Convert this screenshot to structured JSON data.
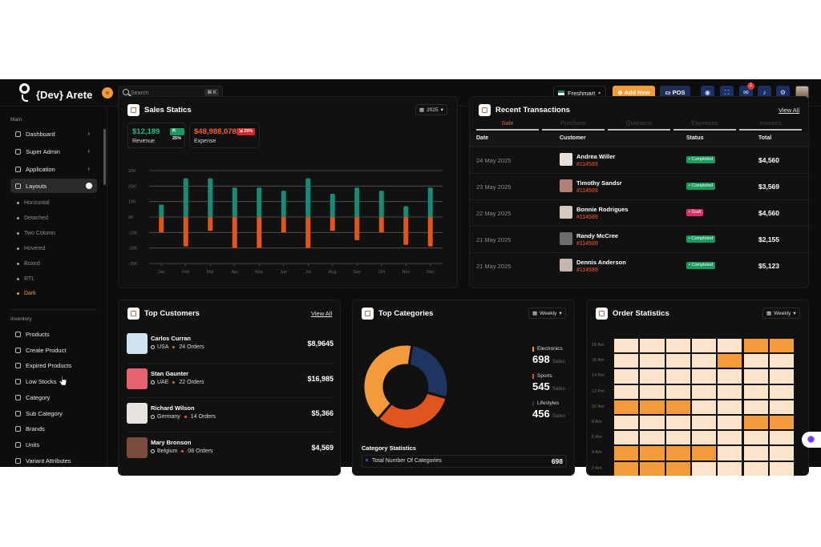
{
  "app": {
    "name": "{Dev} Arete"
  },
  "topbar": {
    "search_placeholder": "Search",
    "shortcut": "⌘ K",
    "store": "Freshmart",
    "add_new": "Add New",
    "pos": "POS",
    "notification_count": "1",
    "accent": "#f39a3a"
  },
  "sidebar": {
    "main_heading": "Main",
    "items": [
      {
        "label": "Dashboard"
      },
      {
        "label": "Super Admin"
      },
      {
        "label": "Application"
      },
      {
        "label": "Layouts"
      }
    ],
    "layouts": [
      "Horizontal",
      "Detached",
      "Two Column",
      "Hovered",
      "Boxed",
      "RTL",
      "Dark"
    ],
    "inventory_heading": "Inventory",
    "inventory": [
      "Products",
      "Create Product",
      "Expired Products",
      "Low Stocks",
      "Category",
      "Sub Category",
      "Brands",
      "Units",
      "Variant Attributes"
    ]
  },
  "sales": {
    "title": "Sales Statics",
    "year": "2025",
    "revenue": {
      "value": "$12,189",
      "pct": "25%",
      "label": "Revenue"
    },
    "expense": {
      "value": "$48,988,078",
      "pct": "25%",
      "label": "Expense"
    }
  },
  "chart_data": {
    "type": "bar",
    "categories": [
      "Jan",
      "Feb",
      "Mar",
      "Apr",
      "May",
      "Jun",
      "Jul",
      "Aug",
      "Sep",
      "Oct",
      "Nov",
      "Dec"
    ],
    "yticks": [
      "30K",
      "20K",
      "10K",
      "0K",
      "-10K",
      "-20K",
      "-30K"
    ],
    "ylim": [
      -30,
      30
    ],
    "series": [
      {
        "values": [
          8,
          25,
          25,
          19,
          19,
          17,
          25,
          15,
          19,
          17,
          7,
          19
        ],
        "color": "#1a8a78"
      },
      {
        "values": [
          -10,
          -19,
          -9,
          -20,
          -20,
          -10,
          -20,
          -9,
          -15,
          -10,
          -18,
          -19
        ],
        "color": "#e0541e"
      }
    ]
  },
  "transactions": {
    "title": "Recent Transactions",
    "view_all": "View All",
    "tabs": [
      "Sale",
      "Purchase",
      "Quotation",
      "Expenses",
      "Invoices"
    ],
    "headers": [
      "Date",
      "Customer",
      "Status",
      "Total"
    ],
    "rows": [
      {
        "date": "24 May 2025",
        "name": "Andrea Willer",
        "id": "#114589",
        "status": "Completed",
        "total": "$4,560"
      },
      {
        "date": "23 May 2025",
        "name": "Timothy Sandsr",
        "id": "#114589",
        "status": "Completed",
        "total": "$3,569"
      },
      {
        "date": "22 May 2025",
        "name": "Bonnie Rodrigues",
        "id": "#114589",
        "status": "Draft",
        "total": "$4,560"
      },
      {
        "date": "21 May 2025",
        "name": "Randy McCree",
        "id": "#114589",
        "status": "Completed",
        "total": "$2,155"
      },
      {
        "date": "21 May 2025",
        "name": "Dennis Anderson",
        "id": "#114589",
        "status": "Completed",
        "total": "$5,123"
      }
    ]
  },
  "customers": {
    "title": "Top Customers",
    "view_all": "View All",
    "list": [
      {
        "name": "Carlos Curran",
        "country": "USA",
        "orders": "24 Orders",
        "amount": "$8,9645"
      },
      {
        "name": "Stan Gaunter",
        "country": "UAE",
        "orders": "22 Orders",
        "amount": "$16,985"
      },
      {
        "name": "Richard Wilson",
        "country": "Germany",
        "orders": "14 Orders",
        "amount": "$5,366"
      },
      {
        "name": "Mary Bronson",
        "country": "Belgium",
        "orders": "08 Orders",
        "amount": "$4,569"
      }
    ]
  },
  "categories": {
    "title": "Top Categories",
    "period": "Weekly",
    "items": [
      {
        "name": "Electronics",
        "value": "698",
        "unit": "Sales",
        "color": "#f39a3a"
      },
      {
        "name": "Sports",
        "value": "545",
        "unit": "Sales",
        "color": "#e0541e"
      },
      {
        "name": "Lifestyles",
        "value": "456",
        "unit": "Sales",
        "color": "#1d3560"
      }
    ],
    "donut": [
      {
        "value": 698,
        "color": "#f39a3a"
      },
      {
        "value": 545,
        "color": "#e0541e"
      },
      {
        "value": 456,
        "color": "#1d3560"
      }
    ],
    "stats_heading": "Category Statistics",
    "total_label": "Total Number Of Categories",
    "total_value": "698"
  },
  "order_stats": {
    "title": "Order Statistics",
    "period": "Weekly",
    "hours": [
      "18 Am",
      "16 Am",
      "14 Pm",
      "12 Pm",
      "10 Am",
      "8 Am",
      "6 Am",
      "4 Am",
      "2 Am"
    ],
    "grid": [
      [
        0,
        0,
        0,
        0,
        0,
        1,
        1
      ],
      [
        0,
        0,
        0,
        0,
        1,
        0,
        0
      ],
      [
        0,
        0,
        0,
        0,
        0,
        0,
        0
      ],
      [
        0,
        0,
        0,
        0,
        0,
        0,
        0
      ],
      [
        1,
        1,
        1,
        0,
        0,
        0,
        0
      ],
      [
        0,
        0,
        0,
        0,
        0,
        1,
        1
      ],
      [
        0,
        0,
        0,
        0,
        0,
        0,
        0
      ],
      [
        1,
        1,
        1,
        1,
        0,
        0,
        0
      ],
      [
        1,
        1,
        1,
        0,
        0,
        0,
        0
      ]
    ],
    "light": "#fbe4cc",
    "dark": "#f39a3a"
  }
}
